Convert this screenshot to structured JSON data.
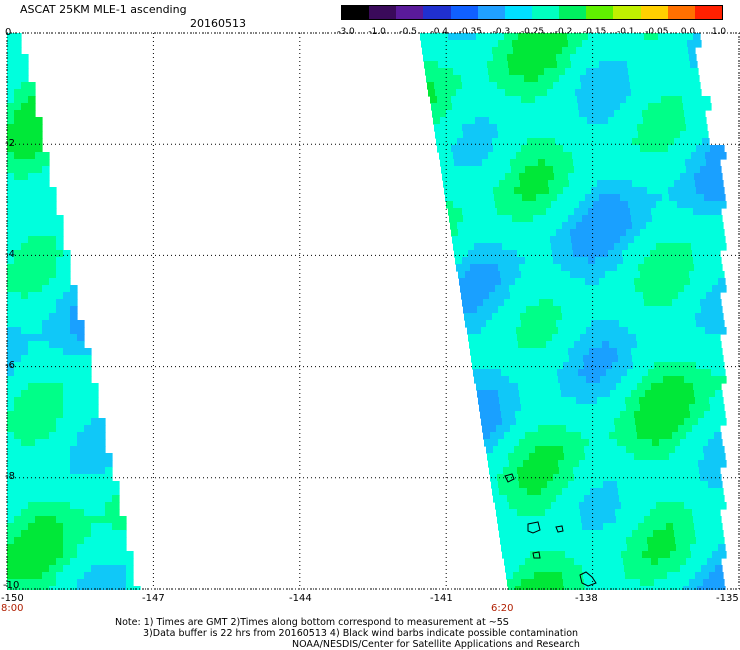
{
  "title": "ASCAT 25KM MLE-1 ascending",
  "date": "20160513",
  "colorbar": {
    "labels": [
      "-3.0",
      "-1.0",
      "-0.5",
      "-0.4",
      "-0.35",
      "-0.3",
      "-0.25",
      "-0.2",
      "-0.15",
      "-0.1",
      "-0.05",
      "0.0",
      "1.0"
    ],
    "colors": [
      "#000000",
      "#3a0a5a",
      "#5a1a9a",
      "#2030d0",
      "#1060ff",
      "#20a0ff",
      "#00e0ff",
      "#00ffc0",
      "#00f060",
      "#60f000",
      "#c0f000",
      "#ffd000",
      "#ff7000",
      "#ff2000"
    ]
  },
  "map": {
    "lon_range": [
      -150,
      -135
    ],
    "lat_range": [
      -10,
      0
    ],
    "x_ticks": [
      "-150",
      "-147",
      "-144",
      "-141",
      "-138",
      "-135"
    ],
    "y_ticks": [
      "0",
      "-2",
      "-4",
      "-6",
      "-8",
      "-10"
    ],
    "time_labels": [
      "8:00",
      "6:20"
    ],
    "grid": "dotted",
    "swath_colors": {
      "base": "#00ffdd",
      "low": "#10c8f8",
      "lower": "#1aa0ff",
      "high": "#00ff88",
      "higher": "#00e838"
    }
  },
  "notes": {
    "line1": "Note: 1) Times are GMT 2)Times along bottom correspond to measurement at ~5S",
    "line2": "3)Data buffer is 22 hrs from 20160513 4) Black wind barbs indicate possible contamination",
    "line3": "NOAA/NESDIS/Center for Satellite Applications and Research"
  }
}
